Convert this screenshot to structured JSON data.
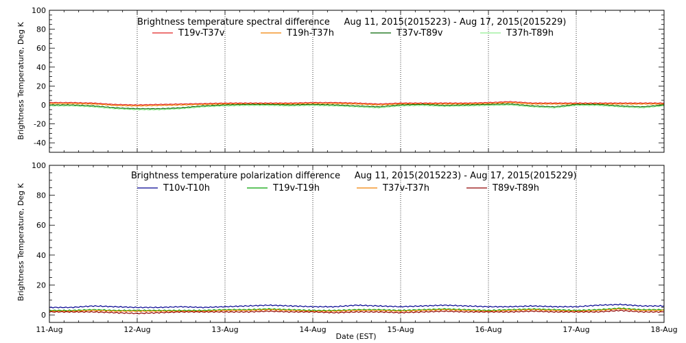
{
  "chart_data": [
    {
      "type": "line",
      "title": "Brightness temperature spectral difference     Aug 11, 2015(2015223) - Aug 17, 2015(2015229)",
      "ylabel": "Brightness Temperature, Deg K",
      "xlabel": "",
      "ylim": [
        -50,
        100
      ],
      "yticks": [
        -40,
        -20,
        0,
        20,
        40,
        60,
        80,
        100
      ],
      "xlim": [
        0,
        7
      ],
      "xticks": [
        0,
        1,
        2,
        3,
        4,
        5,
        6,
        7
      ],
      "xticklabels": [],
      "grid": "vertical dotted at day boundaries",
      "legend_position": "top",
      "series": [
        {
          "name": "T19v-T37v",
          "color": "#e02020",
          "x": [
            0,
            0.25,
            0.5,
            0.75,
            1,
            1.25,
            1.5,
            1.75,
            2,
            2.25,
            2.5,
            2.75,
            3,
            3.25,
            3.5,
            3.75,
            4,
            4.25,
            4.5,
            4.75,
            5,
            5.25,
            5.5,
            5.75,
            6,
            6.25,
            6.5,
            6.75,
            7
          ],
          "values": [
            2.5,
            2.5,
            2,
            0.5,
            0,
            0.5,
            1,
            1.5,
            2,
            2,
            2,
            2,
            2.5,
            2.5,
            2,
            1,
            2,
            2,
            2,
            2,
            2.5,
            3.5,
            2,
            2,
            2,
            2,
            2,
            2,
            2
          ]
        },
        {
          "name": "T19h-T37h",
          "color": "#f08000",
          "x": [
            0,
            0.25,
            0.5,
            0.75,
            1,
            1.25,
            1.5,
            1.75,
            2,
            2.25,
            2.5,
            2.75,
            3,
            3.25,
            3.5,
            3.75,
            4,
            4.25,
            4.5,
            4.75,
            5,
            5.25,
            5.5,
            5.75,
            6,
            6.25,
            6.5,
            6.75,
            7
          ],
          "values": [
            1.5,
            1.5,
            1,
            -0.5,
            -1,
            -0.5,
            0,
            0.5,
            1,
            1,
            1,
            1,
            1.5,
            1.5,
            1,
            0,
            1,
            1,
            1,
            1,
            1.5,
            2.5,
            1,
            1,
            1,
            1,
            1,
            1,
            1
          ]
        },
        {
          "name": "T37v-T89v",
          "color": "#006400",
          "x": [
            0,
            0.25,
            0.5,
            0.75,
            1,
            1.25,
            1.5,
            1.75,
            2,
            2.25,
            2.5,
            2.75,
            3,
            3.25,
            3.5,
            3.75,
            4,
            4.25,
            4.5,
            4.75,
            5,
            5.25,
            5.5,
            5.75,
            6,
            6.25,
            6.5,
            6.75,
            7
          ],
          "values": [
            0,
            0,
            -1,
            -3,
            -4,
            -4,
            -3,
            -1,
            0,
            0.5,
            0.5,
            0,
            0.5,
            0,
            -1,
            -2,
            0,
            0.5,
            -0.5,
            0,
            0.5,
            1,
            -1,
            -2,
            0.5,
            0.5,
            -1,
            -2,
            0
          ]
        },
        {
          "name": "T37h-T89h",
          "color": "#90ee90",
          "x": [
            0,
            0.25,
            0.5,
            0.75,
            1,
            1.25,
            1.5,
            1.75,
            2,
            2.25,
            2.5,
            2.75,
            3,
            3.25,
            3.5,
            3.75,
            4,
            4.25,
            4.5,
            4.75,
            5,
            5.25,
            5.5,
            5.75,
            6,
            6.25,
            6.5,
            6.75,
            7
          ],
          "values": [
            -1,
            -1,
            -2,
            -4,
            -5,
            -5,
            -4,
            -2,
            -1,
            -0.5,
            -0.5,
            -1,
            -0.5,
            -1,
            -2,
            -3,
            -1,
            -0.5,
            -1.5,
            -1,
            -0.5,
            0,
            -2,
            -3,
            -0.5,
            -0.5,
            -2,
            -3,
            -1
          ]
        }
      ]
    },
    {
      "type": "line",
      "title": "Brightness temperature polarization difference     Aug 11, 2015(2015223) - Aug 17, 2015(2015229)",
      "ylabel": "Brightness Temperature, Deg K",
      "xlabel": "Date (EST)",
      "ylim": [
        -5,
        100
      ],
      "yticks": [
        0,
        20,
        40,
        60,
        80,
        100
      ],
      "xlim": [
        0,
        7
      ],
      "xticks": [
        0,
        1,
        2,
        3,
        4,
        5,
        6,
        7
      ],
      "xticklabels": [
        "11-Aug",
        "12-Aug",
        "13-Aug",
        "14-Aug",
        "15-Aug",
        "16-Aug",
        "17-Aug",
        "18-Aug"
      ],
      "grid": "vertical dotted at day boundaries",
      "legend_position": "top",
      "series": [
        {
          "name": "T10v-T10h",
          "color": "#000090",
          "x": [
            0,
            0.25,
            0.5,
            0.75,
            1,
            1.25,
            1.5,
            1.75,
            2,
            2.25,
            2.5,
            2.75,
            3,
            3.25,
            3.5,
            3.75,
            4,
            4.25,
            4.5,
            4.75,
            5,
            5.25,
            5.5,
            5.75,
            6,
            6.25,
            6.5,
            6.75,
            7
          ],
          "values": [
            5,
            5,
            6,
            5.5,
            5,
            5,
            5.5,
            5,
            5.5,
            6,
            6.5,
            6,
            5.5,
            5.5,
            6.5,
            6,
            5.5,
            6,
            6.5,
            6,
            5.5,
            5.5,
            6,
            5.5,
            5.5,
            6.5,
            7,
            6,
            6
          ]
        },
        {
          "name": "T19v-T19h",
          "color": "#00a000",
          "x": [
            0,
            0.25,
            0.5,
            0.75,
            1,
            1.25,
            1.5,
            1.75,
            2,
            2.25,
            2.5,
            2.75,
            3,
            3.25,
            3.5,
            3.75,
            4,
            4.25,
            4.5,
            4.75,
            5,
            5.25,
            5.5,
            5.75,
            6,
            6.25,
            6.5,
            6.75,
            7
          ],
          "values": [
            3,
            3,
            3.5,
            3,
            3,
            3,
            3,
            3,
            3.5,
            3.5,
            4,
            3.5,
            3,
            3,
            3.5,
            3.5,
            3,
            3.5,
            4,
            3.5,
            3,
            3.5,
            4,
            3.5,
            3,
            3.5,
            4.5,
            3.5,
            3.5
          ]
        },
        {
          "name": "T37v-T37h",
          "color": "#f08000",
          "x": [
            0,
            0.25,
            0.5,
            0.75,
            1,
            1.25,
            1.5,
            1.75,
            2,
            2.25,
            2.5,
            2.75,
            3,
            3.25,
            3.5,
            3.75,
            4,
            4.25,
            4.5,
            4.75,
            5,
            5.25,
            5.5,
            5.75,
            6,
            6.25,
            6.5,
            6.75,
            7
          ],
          "values": [
            2.5,
            2.5,
            3,
            2.5,
            2.5,
            2.5,
            2.5,
            2.5,
            3,
            3,
            3.5,
            3,
            2.5,
            2.5,
            3,
            3,
            2.5,
            3,
            3.5,
            3,
            2.5,
            3,
            3.5,
            3,
            2.5,
            3,
            4,
            3,
            3
          ]
        },
        {
          "name": "T89v-T89h",
          "color": "#900000",
          "x": [
            0,
            0.25,
            0.5,
            0.75,
            1,
            1.25,
            1.5,
            1.75,
            2,
            2.25,
            2.5,
            2.75,
            3,
            3.25,
            3.5,
            3.75,
            4,
            4.25,
            4.5,
            4.75,
            5,
            5.25,
            5.5,
            5.75,
            6,
            6.25,
            6.5,
            6.75,
            7
          ],
          "values": [
            2,
            2,
            2,
            1.5,
            1,
            1.5,
            2,
            2,
            2,
            2,
            2.5,
            2,
            2,
            1.5,
            2,
            2,
            1.5,
            2,
            2.5,
            2,
            2,
            2,
            2.5,
            2,
            2,
            2,
            3,
            2,
            2
          ]
        }
      ]
    }
  ]
}
